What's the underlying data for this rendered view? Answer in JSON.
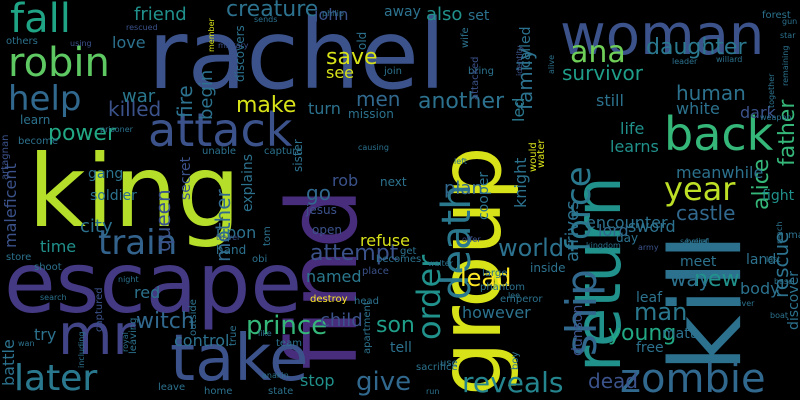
{
  "wordcloud": {
    "background": "#000000",
    "colormap": "viridis",
    "words": [
      {
        "text": "rachel",
        "color": "#3b528b"
      },
      {
        "text": "king",
        "color": "#b5de2b"
      },
      {
        "text": "escape",
        "color": "#443983"
      },
      {
        "text": "find",
        "color": "#472d7b"
      },
      {
        "text": "kill",
        "color": "#2c728e"
      },
      {
        "text": "woman",
        "color": "#3b528b"
      },
      {
        "text": "take",
        "color": "#3b528b"
      },
      {
        "text": "group",
        "color": "#d8e219"
      },
      {
        "text": "return",
        "color": "#21918c"
      },
      {
        "text": "mr",
        "color": "#414487"
      },
      {
        "text": "attack",
        "color": "#3b528b"
      },
      {
        "text": "ship",
        "color": "#31688e"
      },
      {
        "text": "back",
        "color": "#35b779"
      },
      {
        "text": "zombie",
        "color": "#31688e"
      },
      {
        "text": "robin",
        "color": "#5ec962"
      },
      {
        "text": "fall",
        "color": "#20a486"
      },
      {
        "text": "death",
        "color": "#2a788e"
      },
      {
        "text": "force",
        "color": "#2a788e"
      },
      {
        "text": "later",
        "color": "#2a788e"
      },
      {
        "text": "order",
        "color": "#21918c"
      },
      {
        "text": "reveals",
        "color": "#25858e"
      },
      {
        "text": "train",
        "color": "#33638d"
      },
      {
        "text": "help",
        "color": "#31688e"
      },
      {
        "text": "year",
        "color": "#bddf26"
      },
      {
        "text": "ana",
        "color": "#6ece58"
      },
      {
        "text": "prince",
        "color": "#35b779"
      },
      {
        "text": "alice",
        "color": "#35b779"
      },
      {
        "text": "make",
        "color": "#d8e219"
      },
      {
        "text": "give",
        "color": "#31688e"
      },
      {
        "text": "man",
        "color": "#2a788e"
      },
      {
        "text": "daughter",
        "color": "#2a788e"
      },
      {
        "text": "new",
        "color": "#21918c"
      },
      {
        "text": "world",
        "color": "#2c728e"
      },
      {
        "text": "lead",
        "color": "#fde725"
      },
      {
        "text": "witch",
        "color": "#31688e"
      },
      {
        "text": "son",
        "color": "#1f9e89"
      },
      {
        "text": "attempt",
        "color": "#3b528b"
      },
      {
        "text": "another",
        "color": "#2c728e"
      },
      {
        "text": "power",
        "color": "#22a884"
      },
      {
        "text": "save",
        "color": "#d8e219"
      },
      {
        "text": "queen",
        "color": "#3b528b"
      },
      {
        "text": "mother",
        "color": "#31688e"
      },
      {
        "text": "creature",
        "color": "#2c728e"
      },
      {
        "text": "friend",
        "color": "#21918c"
      },
      {
        "text": "young",
        "color": "#22a884"
      },
      {
        "text": "killed",
        "color": "#3b528b"
      },
      {
        "text": "father",
        "color": "#35b779"
      },
      {
        "text": "rescue",
        "color": "#2c728e"
      },
      {
        "text": "survivor",
        "color": "#1f9e89"
      },
      {
        "text": "human",
        "color": "#2c728e"
      },
      {
        "text": "men",
        "color": "#31688e"
      },
      {
        "text": "way",
        "color": "#2c728e"
      },
      {
        "text": "fire",
        "color": "#2c728e"
      },
      {
        "text": "war",
        "color": "#2a788e"
      },
      {
        "text": "castle",
        "color": "#31688e"
      },
      {
        "text": "family",
        "color": "#2c728e"
      },
      {
        "text": "dead",
        "color": "#3b528b"
      },
      {
        "text": "time",
        "color": "#21918c"
      },
      {
        "text": "city",
        "color": "#2c728e"
      },
      {
        "text": "later",
        "color": "#2a788e"
      },
      {
        "text": "also",
        "color": "#21918c"
      },
      {
        "text": "child",
        "color": "#3b528b"
      },
      {
        "text": "control",
        "color": "#2c728e"
      },
      {
        "text": "begin",
        "color": "#2c728e"
      },
      {
        "text": "go",
        "color": "#31688e"
      },
      {
        "text": "named",
        "color": "#2a788e"
      },
      {
        "text": "learns",
        "color": "#21918c"
      },
      {
        "text": "encounter",
        "color": "#2c728e"
      },
      {
        "text": "sword",
        "color": "#2c728e"
      },
      {
        "text": "body",
        "color": "#2c728e"
      },
      {
        "text": "stop",
        "color": "#21918c"
      },
      {
        "text": "rob",
        "color": "#3b528b"
      },
      {
        "text": "plan",
        "color": "#31688e"
      },
      {
        "text": "turn",
        "color": "#2c728e"
      },
      {
        "text": "see",
        "color": "#d8e219"
      },
      {
        "text": "john",
        "color": "#3b528b"
      },
      {
        "text": "refuse",
        "color": "#d8e219"
      },
      {
        "text": "arrives",
        "color": "#2c728e"
      },
      {
        "text": "still",
        "color": "#2c728e"
      },
      {
        "text": "meanwhile",
        "color": "#2c728e"
      },
      {
        "text": "white",
        "color": "#2c728e"
      },
      {
        "text": "dark",
        "color": "#3b528b"
      },
      {
        "text": "life",
        "color": "#21918c"
      },
      {
        "text": "lord",
        "color": "#31688e"
      },
      {
        "text": "knight",
        "color": "#2c728e"
      },
      {
        "text": "led",
        "color": "#2a788e"
      },
      {
        "text": "called",
        "color": "#2c728e"
      },
      {
        "text": "set",
        "color": "#2c728e"
      },
      {
        "text": "away",
        "color": "#2c728e"
      },
      {
        "text": "love",
        "color": "#2c728e"
      },
      {
        "text": "red",
        "color": "#2c728e"
      },
      {
        "text": "try",
        "color": "#2c728e"
      },
      {
        "text": "battle",
        "color": "#2c728e"
      },
      {
        "text": "soldier",
        "color": "#2c728e"
      },
      {
        "text": "gang",
        "color": "#2c728e"
      },
      {
        "text": "maleficent",
        "color": "#3b528b"
      },
      {
        "text": "secret",
        "color": "#3b528b"
      },
      {
        "text": "upon",
        "color": "#2c728e"
      },
      {
        "text": "explains",
        "color": "#2c728e"
      },
      {
        "text": "next",
        "color": "#2c728e"
      },
      {
        "text": "fight",
        "color": "#21918c"
      },
      {
        "text": "matt",
        "color": "#2c728e"
      },
      {
        "text": "leaf",
        "color": "#2c728e"
      },
      {
        "text": "meet",
        "color": "#2c728e"
      },
      {
        "text": "land",
        "color": "#2c728e"
      },
      {
        "text": "free",
        "color": "#2c728e"
      },
      {
        "text": "however",
        "color": "#2c728e"
      },
      {
        "text": "tell",
        "color": "#2c728e"
      },
      {
        "text": "inside",
        "color": "#2c728e"
      },
      {
        "text": "discover",
        "color": "#2c728e"
      },
      {
        "text": "magic",
        "color": "#2c728e"
      },
      {
        "text": "day",
        "color": "#2c728e"
      },
      {
        "text": "dunson",
        "color": "#3b528b"
      },
      {
        "text": "cooper",
        "color": "#2c728e"
      },
      {
        "text": "open",
        "color": "#3b528b"
      },
      {
        "text": "jesus",
        "color": "#3b528b"
      },
      {
        "text": "sister",
        "color": "#2c728e"
      },
      {
        "text": "old",
        "color": "#2c728e"
      },
      {
        "text": "discovers",
        "color": "#2c728e"
      },
      {
        "text": "mission",
        "color": "#2c728e"
      },
      {
        "text": "others",
        "color": "#2c728e"
      },
      {
        "text": "join",
        "color": "#2c728e"
      },
      {
        "text": "bring",
        "color": "#2c728e"
      },
      {
        "text": "wife",
        "color": "#2c728e"
      },
      {
        "text": "attacked",
        "color": "#3b528b"
      },
      {
        "text": "identity",
        "color": "#3b528b"
      },
      {
        "text": "alive",
        "color": "#2c728e"
      },
      {
        "text": "leader",
        "color": "#2c728e"
      },
      {
        "text": "willard",
        "color": "#2c728e"
      },
      {
        "text": "forest",
        "color": "#2c728e"
      },
      {
        "text": "gun",
        "color": "#2c728e"
      },
      {
        "text": "star",
        "color": "#2c728e"
      },
      {
        "text": "weapon",
        "color": "#2c728e"
      },
      {
        "text": "together",
        "color": "#2c728e"
      },
      {
        "text": "remaining",
        "color": "#2c728e"
      },
      {
        "text": "prisoner",
        "color": "#2c728e"
      },
      {
        "text": "learn",
        "color": "#2c728e"
      },
      {
        "text": "become",
        "color": "#2c728e"
      },
      {
        "text": "artagnan",
        "color": "#3b528b"
      },
      {
        "text": "store",
        "color": "#2c728e"
      },
      {
        "text": "shoot",
        "color": "#2c728e"
      },
      {
        "text": "search",
        "color": "#2c728e"
      },
      {
        "text": "wan",
        "color": "#2c728e"
      },
      {
        "text": "night",
        "color": "#2c728e"
      },
      {
        "text": "captured",
        "color": "#3b528b"
      },
      {
        "text": "royal",
        "color": "#2c728e"
      },
      {
        "text": "leaving",
        "color": "#2c728e"
      },
      {
        "text": "including",
        "color": "#2c728e"
      },
      {
        "text": "leave",
        "color": "#2c728e"
      },
      {
        "text": "home",
        "color": "#2c728e"
      },
      {
        "text": "state",
        "color": "#2c728e"
      },
      {
        "text": "anakin",
        "color": "#2c728e"
      },
      {
        "text": "outside",
        "color": "#2c728e"
      },
      {
        "text": "true",
        "color": "#2c728e"
      },
      {
        "text": "like",
        "color": "#2c728e"
      },
      {
        "text": "team",
        "color": "#2c728e"
      },
      {
        "text": "destroy",
        "color": "#fde725"
      },
      {
        "text": "head",
        "color": "#2c728e"
      },
      {
        "text": "apartment",
        "color": "#2c728e"
      },
      {
        "text": "sacrifice",
        "color": "#2c728e"
      },
      {
        "text": "run",
        "color": "#2c728e"
      },
      {
        "text": "use",
        "color": "#2c728e"
      },
      {
        "text": "boy",
        "color": "#2c728e"
      },
      {
        "text": "emperor",
        "color": "#2c728e"
      },
      {
        "text": "lee",
        "color": "#2c728e"
      },
      {
        "text": "phantom",
        "color": "#2c728e"
      },
      {
        "text": "large",
        "color": "#2c728e"
      },
      {
        "text": "walter",
        "color": "#2c728e"
      },
      {
        "text": "place",
        "color": "#3b528b"
      },
      {
        "text": "hand",
        "color": "#2c728e"
      },
      {
        "text": "obi",
        "color": "#2c728e"
      },
      {
        "text": "tom",
        "color": "#2c728e"
      },
      {
        "text": "travel",
        "color": "#3b528b"
      },
      {
        "text": "unable",
        "color": "#2c728e"
      },
      {
        "text": "capture",
        "color": "#2c728e"
      },
      {
        "text": "causing",
        "color": "#2c728e"
      },
      {
        "text": "left",
        "color": "#2c728e"
      },
      {
        "text": "would",
        "color": "#d8e219"
      },
      {
        "text": "water",
        "color": "#d8e219"
      },
      {
        "text": "kingdom",
        "color": "#2c728e"
      },
      {
        "text": "army",
        "color": "#3b528b"
      },
      {
        "text": "several",
        "color": "#2c728e"
      },
      {
        "text": "belief",
        "color": "#2c728e"
      },
      {
        "text": "reach",
        "color": "#2c728e"
      },
      {
        "text": "base",
        "color": "#2c728e"
      },
      {
        "text": "river",
        "color": "#2c728e"
      },
      {
        "text": "boat",
        "color": "#2c728e"
      },
      {
        "text": "last",
        "color": "#2c728e"
      },
      {
        "text": "becomes",
        "color": "#2c728e"
      },
      {
        "text": "get",
        "color": "#2c728e"
      },
      {
        "text": "offer",
        "color": "#3b528b"
      },
      {
        "text": "using",
        "color": "#3b528b"
      },
      {
        "text": "rescued",
        "color": "#3b528b"
      },
      {
        "text": "sends",
        "color": "#2c728e"
      },
      {
        "text": "philip",
        "color": "#2c728e"
      },
      {
        "text": "member",
        "color": "#d8e219"
      },
      {
        "text": "military",
        "color": "#3b528b"
      }
    ]
  }
}
